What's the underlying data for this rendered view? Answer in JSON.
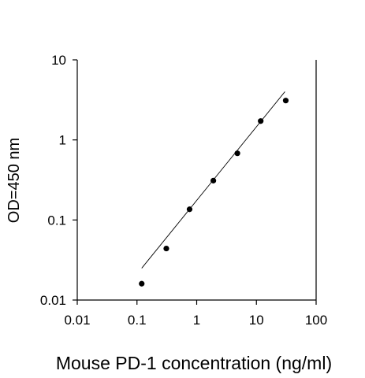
{
  "chart_data": {
    "type": "scatter",
    "title": "",
    "xlabel": "Mouse PD-1 concentration (ng/ml)",
    "ylabel": "OD=450 nm",
    "x_scale": "log",
    "y_scale": "log",
    "xlim": [
      0.01,
      100
    ],
    "ylim": [
      0.01,
      10
    ],
    "x_ticks": [
      "0.01",
      "0.1",
      "1",
      "10",
      "100"
    ],
    "y_ticks": [
      "0.01",
      "0.1",
      "1",
      "10"
    ],
    "grid": false,
    "legend": "none",
    "points": [
      {
        "x": 0.12,
        "y": 0.016
      },
      {
        "x": 0.31,
        "y": 0.044
      },
      {
        "x": 0.76,
        "y": 0.136
      },
      {
        "x": 1.9,
        "y": 0.31
      },
      {
        "x": 4.8,
        "y": 0.68
      },
      {
        "x": 11.8,
        "y": 1.72
      },
      {
        "x": 31,
        "y": 3.1
      }
    ],
    "fit_line": {
      "x": [
        0.12,
        30
      ],
      "y": [
        0.025,
        4.0
      ]
    }
  },
  "colors": {
    "marker": "#000000",
    "line": "#000000",
    "axis": "#000000"
  }
}
